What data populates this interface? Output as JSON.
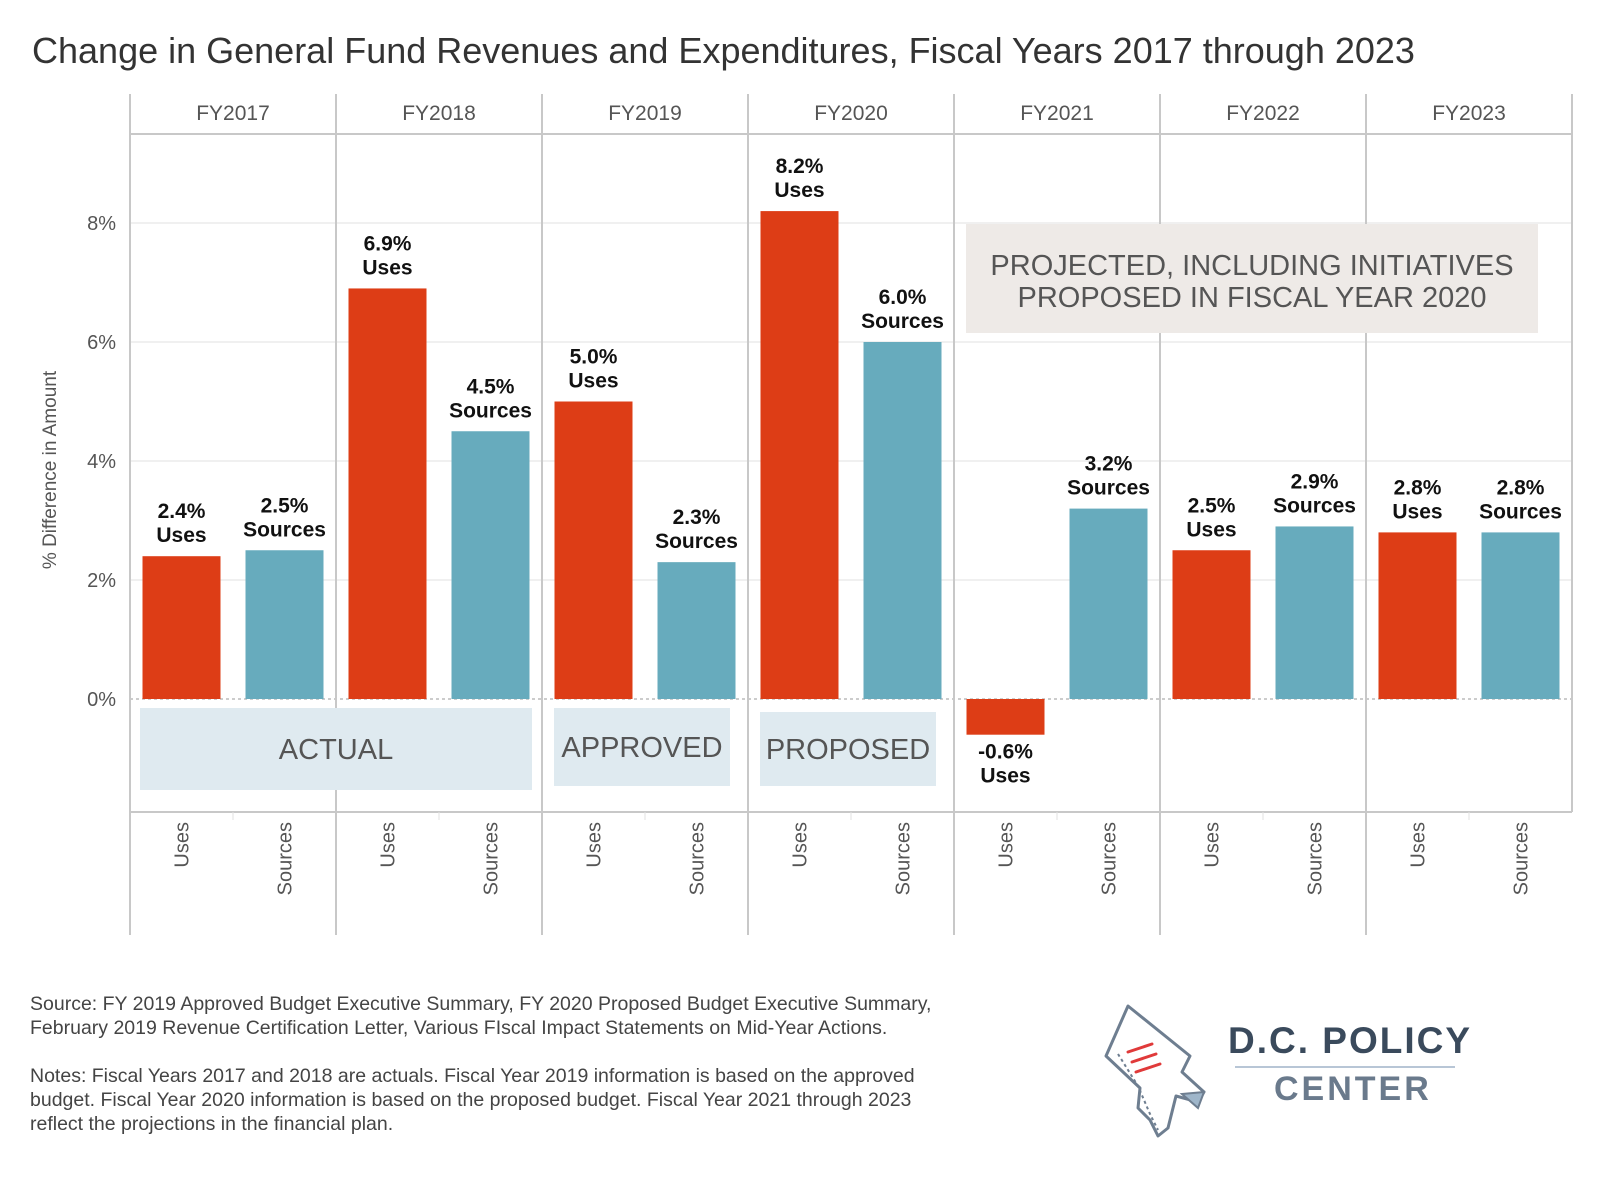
{
  "title": "Change in General Fund Revenues and Expenditures, Fiscal Years 2017 through 2023",
  "colors": {
    "uses": "#dd3d16",
    "sources": "#67abbd",
    "grid": "#e8e8e8",
    "frame": "#c8c8c8",
    "box": "#dfeaf0",
    "projected_box": "#eeeae7"
  },
  "chart_data": {
    "type": "bar",
    "ylabel": "% Difference in Amount",
    "ylim": [
      -1.8,
      9.5
    ],
    "yticks": [
      0,
      2,
      4,
      6,
      8
    ],
    "ytick_labels": [
      "0%",
      "2%",
      "4%",
      "6%",
      "8%"
    ],
    "grid": true,
    "groups": [
      "FY2017",
      "FY2018",
      "FY2019",
      "FY2020",
      "FY2021",
      "FY2022",
      "FY2023"
    ],
    "sub_categories": [
      "Uses",
      "Sources"
    ],
    "series": [
      {
        "name": "Uses",
        "values": [
          2.4,
          6.9,
          5.0,
          8.2,
          -0.6,
          2.5,
          2.8
        ],
        "labels": [
          "2.4%",
          "6.9%",
          "5.0%",
          "8.2%",
          "-0.6%",
          "2.5%",
          "2.8%"
        ]
      },
      {
        "name": "Sources",
        "values": [
          2.5,
          4.5,
          2.3,
          6.0,
          3.2,
          2.9,
          2.8
        ],
        "labels": [
          "2.5%",
          "4.5%",
          "2.3%",
          "6.0%",
          "3.2%",
          "2.9%",
          "2.8%"
        ]
      }
    ],
    "annotations": [
      {
        "text": "ACTUAL",
        "groups": [
          0,
          1
        ]
      },
      {
        "text": "APPROVED",
        "groups": [
          2,
          2
        ]
      },
      {
        "text": "PROPOSED",
        "groups": [
          3,
          3
        ]
      },
      {
        "text": "PROJECTED, INCLUDING INITIATIVES PROPOSED IN FISCAL YEAR 2020",
        "lines": [
          "PROJECTED, INCLUDING INITIATIVES",
          "PROPOSED IN FISCAL YEAR 2020"
        ],
        "groups": [
          4,
          6
        ]
      }
    ]
  },
  "footnotes": {
    "source": "Source: FY 2019 Approved Budget Executive Summary, FY 2020 Proposed Budget Executive Summary, February 2019 Revenue Certification Letter, Various FIscal Impact Statements on Mid-Year Actions.",
    "notes": "Notes: Fiscal Years 2017 and 2018 are actuals. Fiscal Year 2019 information is based on the approved budget. Fiscal Year 2020 information is based on the proposed budget. Fiscal Year 2021 through 2023 reflect the projections in the financial plan."
  },
  "logo": {
    "line1": "D.C. POLICY",
    "line2": "CENTER",
    "icon": "dc-map-document-icon"
  }
}
